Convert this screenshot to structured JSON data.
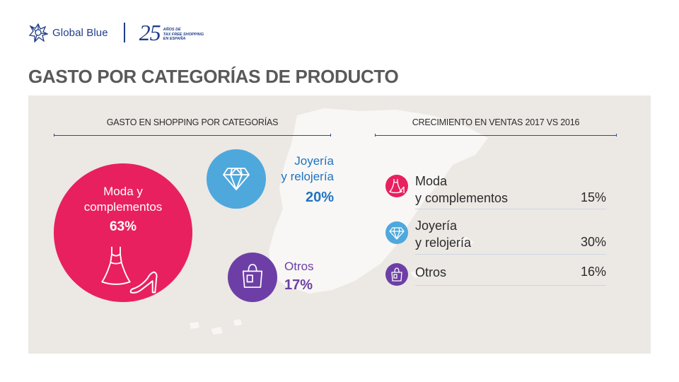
{
  "header": {
    "brand": "Global Blue",
    "anniversary_number": "25",
    "anniversary_lines": [
      "AÑOS DE",
      "TAX FREE SHOPPING",
      "EN ESPAÑA"
    ]
  },
  "page_title": "GASTO POR CATEGORÍAS DE PRODUCTO",
  "chart_data": [
    {
      "type": "bubble",
      "title": "GASTO EN SHOPPING POR CATEGORÍAS",
      "unit": "%",
      "categories": [
        "Moda y complementos",
        "Joyería y relojería",
        "Otros"
      ],
      "values": [
        63,
        20,
        17
      ],
      "colors": [
        "#e8205f",
        "#4ea8dc",
        "#6d3fa6"
      ]
    },
    {
      "type": "table",
      "title": "CRECIMIENTO EN VENTAS 2017 VS 2016",
      "unit": "%",
      "categories": [
        "Moda y complementos",
        "Joyería y relojería",
        "Otros"
      ],
      "values": [
        15,
        30,
        16
      ],
      "colors": [
        "#e8205f",
        "#4ea8dc",
        "#6d3fa6"
      ]
    }
  ],
  "labels": {
    "spend_moda_l1": "Moda y",
    "spend_moda_l2": "complementos",
    "spend_moda_pct": "63%",
    "spend_joy_l1": "Joyería",
    "spend_joy_l2": "y relojería",
    "spend_joy_pct": "20%",
    "spend_otros": "Otros",
    "spend_otros_pct": "17%",
    "growth_moda_l1": "Moda",
    "growth_moda_l2": "y complementos",
    "growth_moda_pct": "15%",
    "growth_joy_l1": "Joyería",
    "growth_joy_l2": "y relojería",
    "growth_joy_pct": "30%",
    "growth_otros": "Otros",
    "growth_otros_pct": "16%"
  },
  "icons": {
    "logo": "global-blue-logo-icon",
    "dress": "dress-icon",
    "shoe": "high-heel-icon",
    "diamond": "diamond-icon",
    "bag": "shopping-bag-icon",
    "map": "spain-map-silhouette"
  }
}
